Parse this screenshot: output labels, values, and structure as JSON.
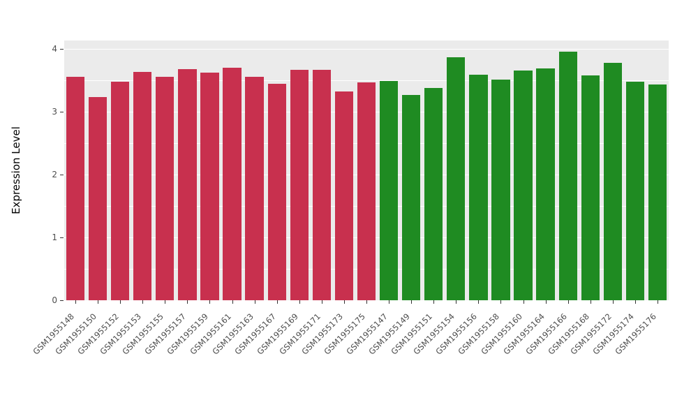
{
  "chart_data": {
    "type": "bar",
    "title": "",
    "xlabel": "",
    "ylabel": "Expression Level",
    "ylim": [
      0,
      4.13
    ],
    "yticks": [
      0,
      1,
      2,
      3,
      4
    ],
    "yticks_minor": [
      0.5,
      1.5,
      2.5,
      3.5
    ],
    "grid": true,
    "legend_position": "none",
    "panel_background": "#EBEBEB",
    "grid_color": "#FFFFFF",
    "group_colors": {
      "group1": "#C8304E",
      "group2": "#1F8B22"
    },
    "bars": [
      {
        "label": "GSM1955148",
        "value": 3.55,
        "group": "group1"
      },
      {
        "label": "GSM1955150",
        "value": 3.23,
        "group": "group1"
      },
      {
        "label": "GSM1955152",
        "value": 3.48,
        "group": "group1"
      },
      {
        "label": "GSM1955153",
        "value": 3.63,
        "group": "group1"
      },
      {
        "label": "GSM1955155",
        "value": 3.55,
        "group": "group1"
      },
      {
        "label": "GSM1955157",
        "value": 3.68,
        "group": "group1"
      },
      {
        "label": "GSM1955159",
        "value": 3.62,
        "group": "group1"
      },
      {
        "label": "GSM1955161",
        "value": 3.7,
        "group": "group1"
      },
      {
        "label": "GSM1955163",
        "value": 3.55,
        "group": "group1"
      },
      {
        "label": "GSM1955167",
        "value": 3.44,
        "group": "group1"
      },
      {
        "label": "GSM1955169",
        "value": 3.66,
        "group": "group1"
      },
      {
        "label": "GSM1955171",
        "value": 3.66,
        "group": "group1"
      },
      {
        "label": "GSM1955173",
        "value": 3.32,
        "group": "group1"
      },
      {
        "label": "GSM1955175",
        "value": 3.46,
        "group": "group1"
      },
      {
        "label": "GSM1955147",
        "value": 3.49,
        "group": "group2"
      },
      {
        "label": "GSM1955149",
        "value": 3.26,
        "group": "group2"
      },
      {
        "label": "GSM1955151",
        "value": 3.37,
        "group": "group2"
      },
      {
        "label": "GSM1955154",
        "value": 3.86,
        "group": "group2"
      },
      {
        "label": "GSM1955156",
        "value": 3.59,
        "group": "group2"
      },
      {
        "label": "GSM1955158",
        "value": 3.51,
        "group": "group2"
      },
      {
        "label": "GSM1955160",
        "value": 3.65,
        "group": "group2"
      },
      {
        "label": "GSM1955164",
        "value": 3.69,
        "group": "group2"
      },
      {
        "label": "GSM1955166",
        "value": 3.95,
        "group": "group2"
      },
      {
        "label": "GSM1955168",
        "value": 3.58,
        "group": "group2"
      },
      {
        "label": "GSM1955172",
        "value": 3.78,
        "group": "group2"
      },
      {
        "label": "GSM1955174",
        "value": 3.48,
        "group": "group2"
      },
      {
        "label": "GSM1955176",
        "value": 3.43,
        "group": "group2"
      }
    ]
  }
}
